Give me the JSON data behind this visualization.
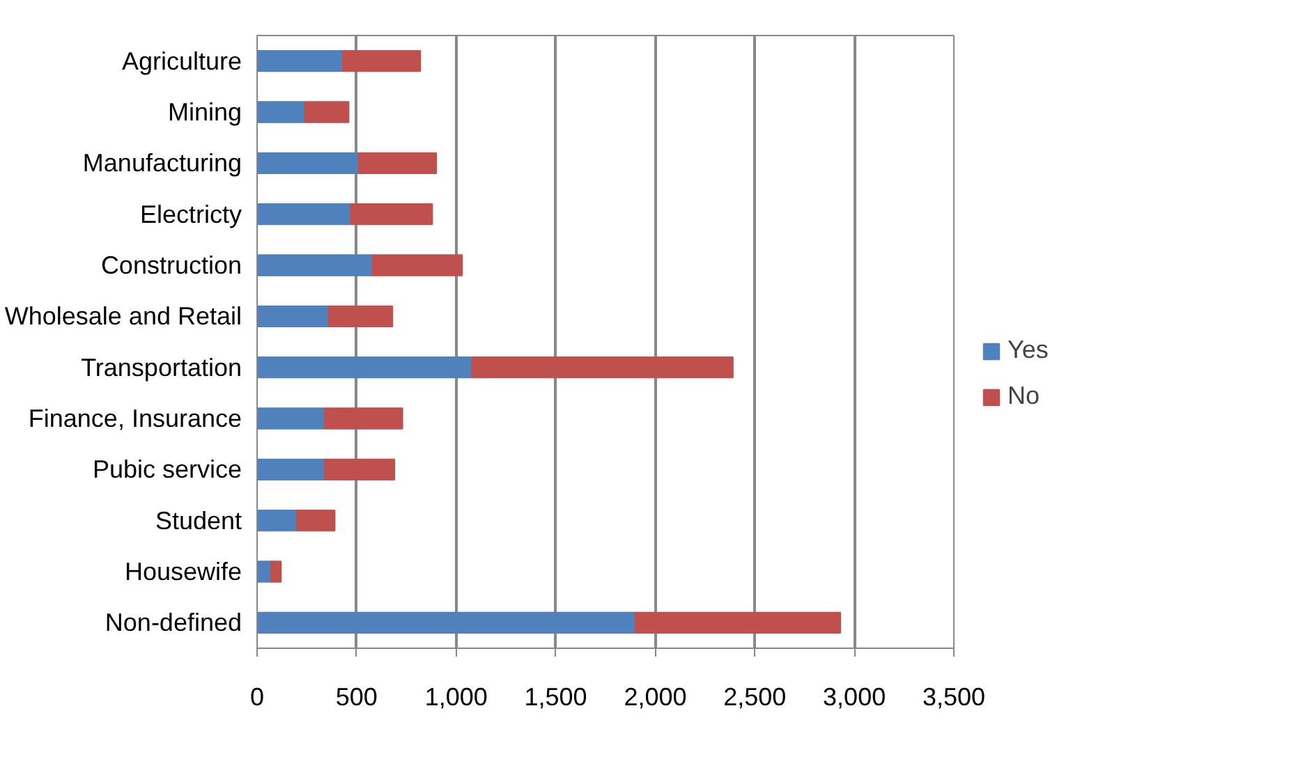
{
  "chart_data": {
    "type": "bar",
    "orientation": "horizontal",
    "stacked": true,
    "categories": [
      "Agriculture",
      "Mining",
      "Manufacturing",
      "Electricty",
      "Construction",
      "Wholesale and Retail",
      "Transportation",
      "Finance, Insurance",
      "Pubic service",
      "Student",
      "Housewife",
      "Non-defined"
    ],
    "series": [
      {
        "name": "Yes",
        "color": "#4f81bd",
        "values": [
          430,
          240,
          510,
          470,
          580,
          360,
          1080,
          340,
          340,
          200,
          70,
          1900
        ]
      },
      {
        "name": "No",
        "color": "#c0504d",
        "values": [
          390,
          220,
          390,
          410,
          450,
          320,
          1310,
          390,
          350,
          190,
          50,
          1030
        ]
      }
    ],
    "xlim": [
      0,
      3500
    ],
    "xticks": [
      {
        "value": 0,
        "label": "0"
      },
      {
        "value": 500,
        "label": "500"
      },
      {
        "value": 1000,
        "label": "1,000"
      },
      {
        "value": 1500,
        "label": "1,500"
      },
      {
        "value": 2000,
        "label": "2,000"
      },
      {
        "value": 2500,
        "label": "2,500"
      },
      {
        "value": 3000,
        "label": "3,000"
      },
      {
        "value": 3500,
        "label": "3,500"
      }
    ],
    "grid": "x",
    "legend": "right"
  }
}
